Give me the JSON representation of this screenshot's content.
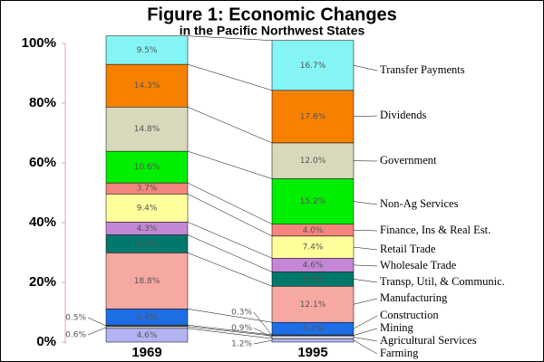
{
  "chart_data": {
    "type": "stacked_bar",
    "title": "Figure 1: Economic Changes",
    "subtitle": "in the Pacific Northwest States",
    "categories": [
      "1969",
      "1995"
    ],
    "ylim": [
      0,
      100
    ],
    "yticks": [
      {
        "value": 0,
        "label": "0%"
      },
      {
        "value": 20,
        "label": "20%"
      },
      {
        "value": 40,
        "label": "40%"
      },
      {
        "value": 60,
        "label": "60%"
      },
      {
        "value": 80,
        "label": "80%"
      },
      {
        "value": 100,
        "label": "100%"
      }
    ],
    "series": [
      {
        "name": "Farming",
        "color": "#b4b4f4",
        "values": [
          4.6,
          1.2
        ],
        "value_labels": [
          "4.6%",
          "1.2%"
        ]
      },
      {
        "name": "Agricultural Services",
        "color": "#e8e8e8",
        "values": [
          0.6,
          0.9
        ],
        "value_labels": [
          "0.6%",
          "0.9%"
        ]
      },
      {
        "name": "Mining",
        "color": "#606060",
        "values": [
          0.5,
          0.3
        ],
        "value_labels": [
          "0.5%",
          "0.3%"
        ]
      },
      {
        "name": "Construction",
        "color": "#1e6ee6",
        "values": [
          5.4,
          4.2
        ],
        "value_labels": [
          "5.4%",
          "4.2%"
        ]
      },
      {
        "name": "Manufacturing",
        "color": "#f6a8a2",
        "values": [
          18.8,
          12.1
        ],
        "value_labels": [
          "18.8%",
          "12.1%"
        ]
      },
      {
        "name": "Transp, Util, & Communic.",
        "color": "#00786c",
        "values": [
          6.0,
          4.8
        ],
        "value_labels": [
          "6.0%",
          "4.8%"
        ]
      },
      {
        "name": "Wholesale Trade",
        "color": "#c486d6",
        "values": [
          4.3,
          4.6
        ],
        "value_labels": [
          "4.3%",
          "4.6%"
        ]
      },
      {
        "name": "Retail Trade",
        "color": "#ffff9c",
        "values": [
          9.4,
          7.4
        ],
        "value_labels": [
          "9.4%",
          "7.4%"
        ]
      },
      {
        "name": "Finance, Ins & Real Est.",
        "color": "#f4847e",
        "values": [
          3.7,
          4.0
        ],
        "value_labels": [
          "3.7%",
          "4.0%"
        ]
      },
      {
        "name": "Non-Ag Services",
        "color": "#00ee00",
        "values": [
          10.6,
          15.2
        ],
        "value_labels": [
          "10.6%",
          "15.2%"
        ]
      },
      {
        "name": "Government",
        "color": "#d8d8ba",
        "values": [
          14.8,
          12.0
        ],
        "value_labels": [
          "14.8%",
          "12.0%"
        ]
      },
      {
        "name": "Dividends",
        "color": "#f88000",
        "values": [
          14.3,
          17.6
        ],
        "value_labels": [
          "14.3%",
          "17.6%"
        ]
      },
      {
        "name": "Transfer Payments",
        "color": "#84f4f4",
        "values": [
          9.5,
          16.7
        ],
        "value_labels": [
          "9.5%",
          "16.7%"
        ]
      }
    ]
  }
}
